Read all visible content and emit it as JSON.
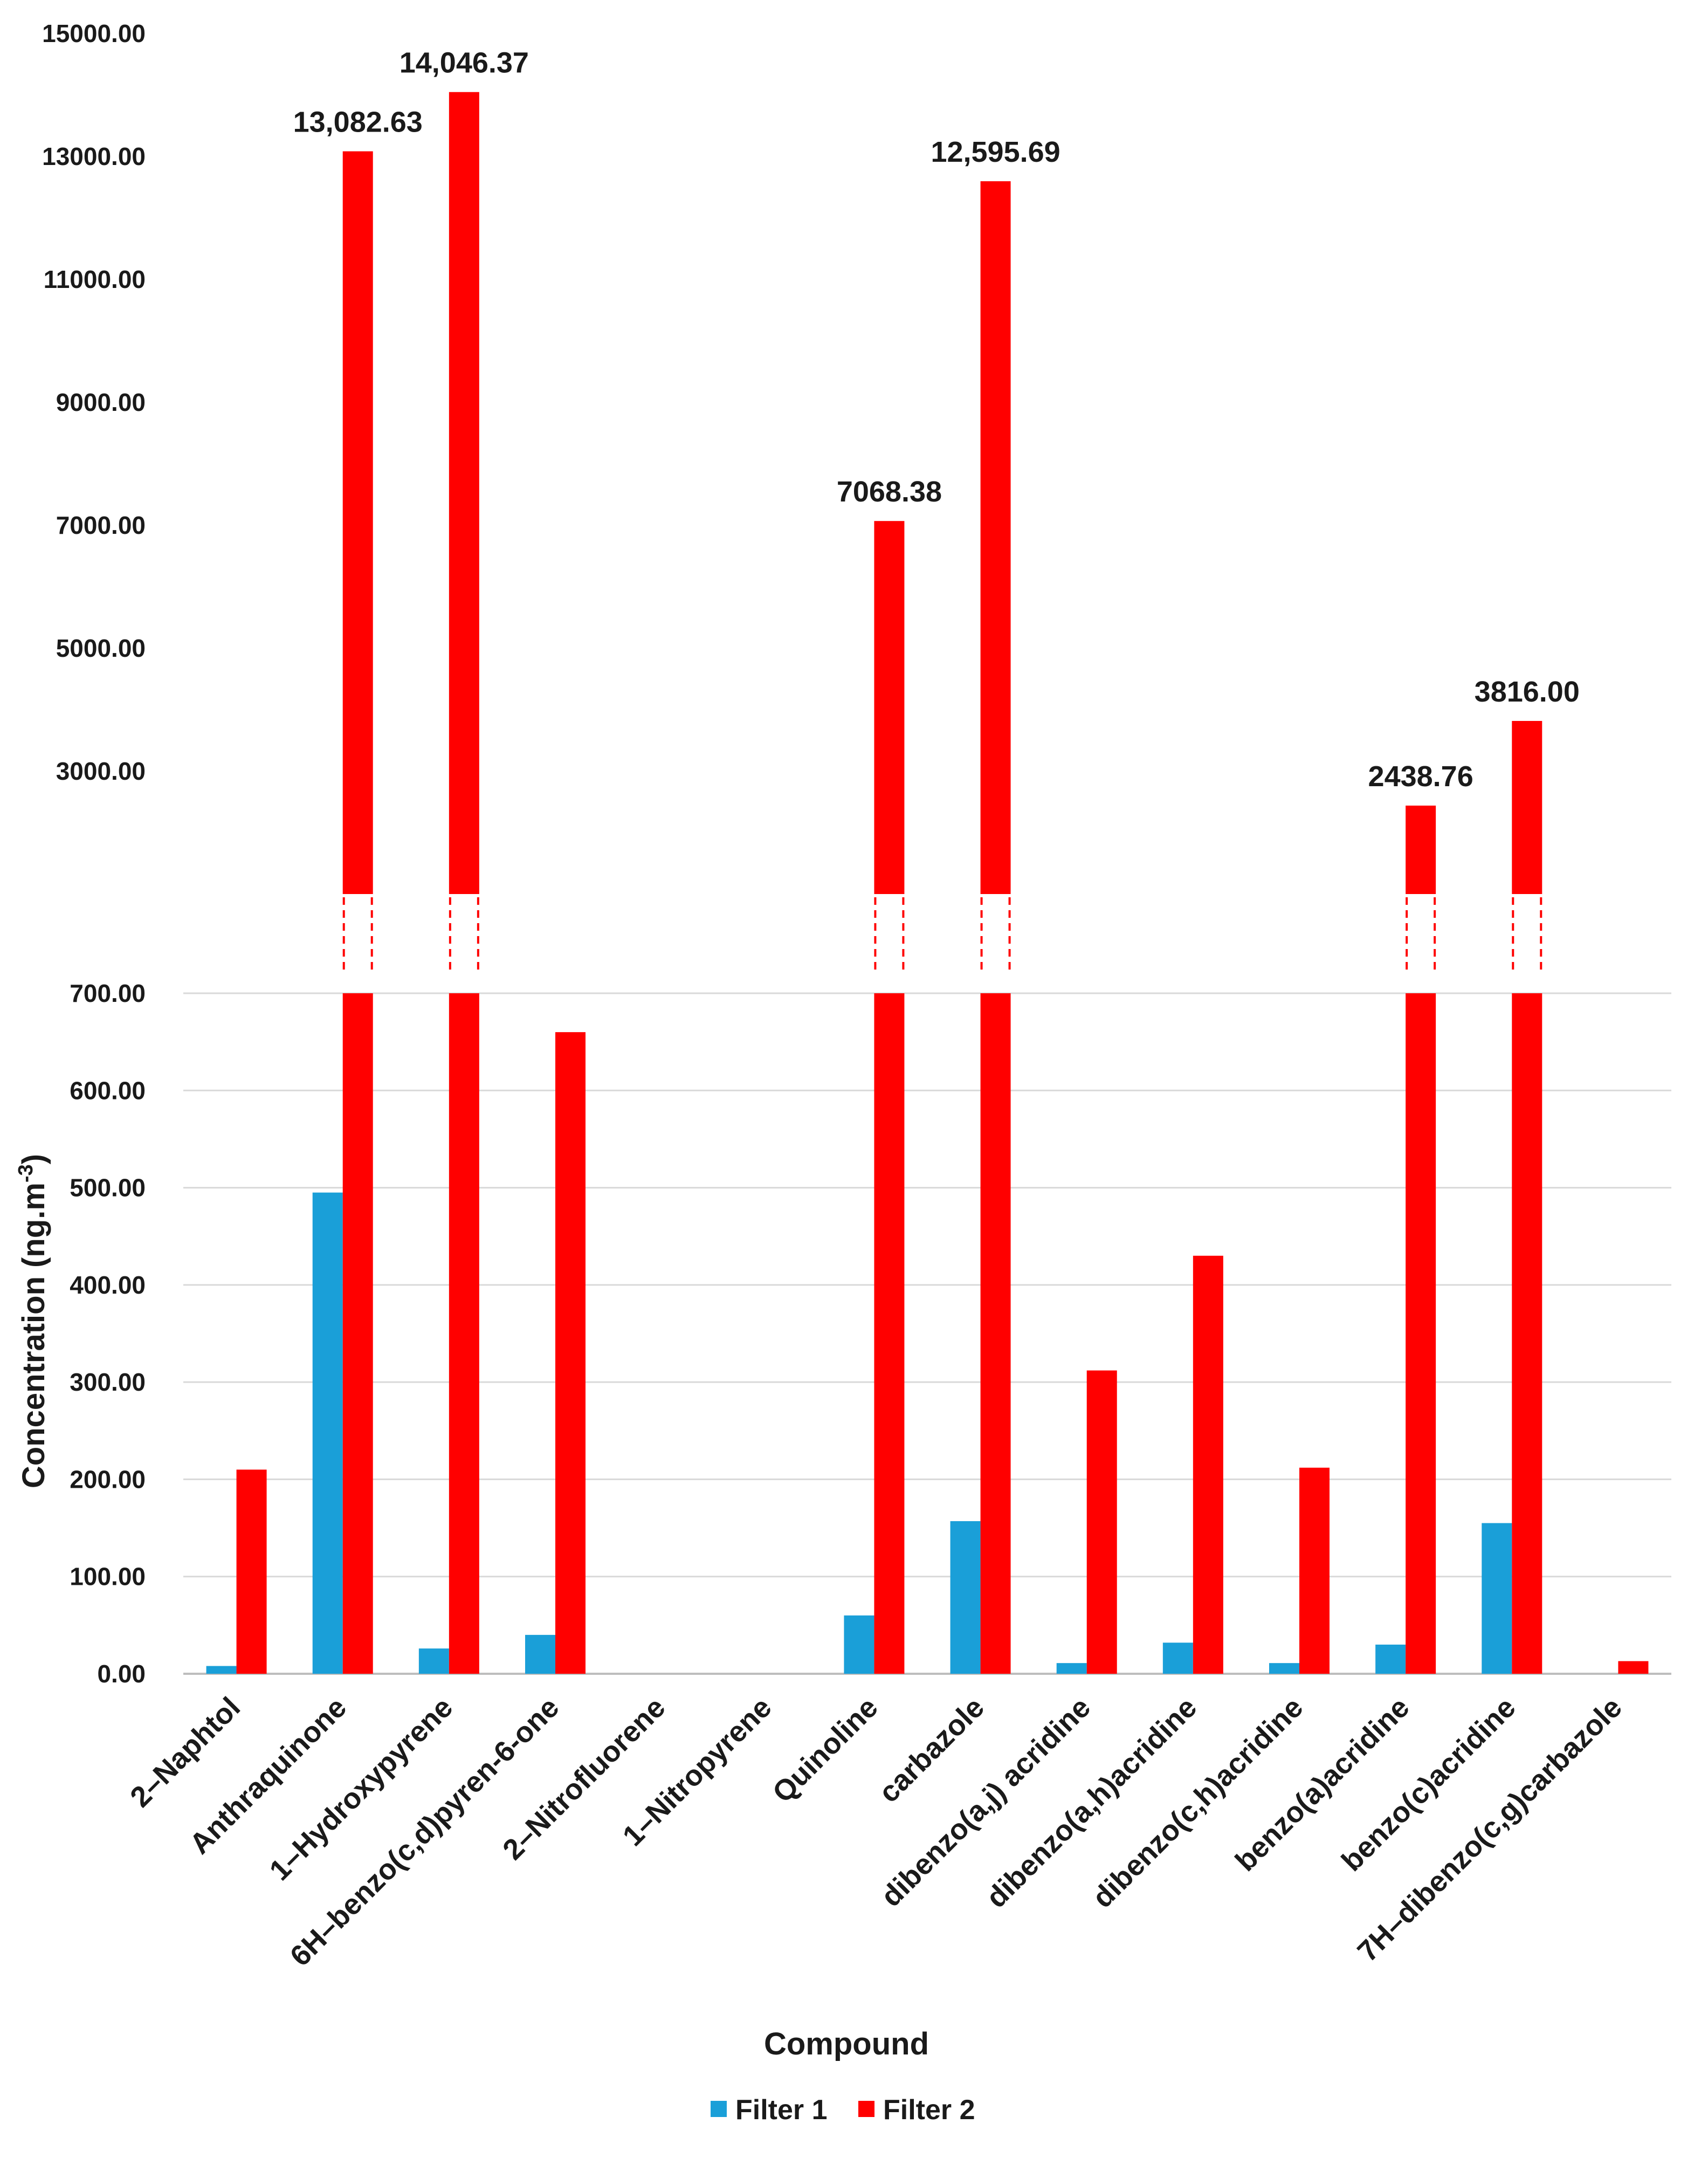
{
  "chart_data": {
    "type": "bar",
    "title": "",
    "xlabel": "Compound",
    "ylabel_main": "Concentration (ng.m",
    "ylabel_sup": "-3",
    "ylabel_close": ")",
    "axis_break": {
      "lower_max": 700,
      "upper_min": 1000,
      "upper_max": 15000
    },
    "lower_ticks": [
      "0.00",
      "100.00",
      "200.00",
      "300.00",
      "400.00",
      "500.00",
      "600.00",
      "700.00"
    ],
    "upper_ticks": [
      "3000.00",
      "5000.00",
      "7000.00",
      "9000.00",
      "11000.00",
      "13000.00",
      "15000.00"
    ],
    "categories": [
      "2–Naphtol",
      "Anthraquinone",
      "1–Hydroxypyrene",
      "6H–benzo(c,d)pyren-6-one",
      "2–Nitrofluorene",
      "1–Nitropyrene",
      "Quinoline",
      "carbazole",
      "dibenzo(a,j) acridine",
      "dibenzo(a,h)acridine",
      "dibenzo(c,h)acridine",
      "benzo(a)acridine",
      "benzo(c)acridine",
      "7H–dibenzo(c,g)carbazole"
    ],
    "series": [
      {
        "name": "Filter 1",
        "color": "#1a9fd8",
        "values": [
          8,
          495,
          26,
          40,
          0,
          0,
          60,
          157,
          11,
          32,
          11,
          30,
          155,
          0
        ]
      },
      {
        "name": "Filter 2",
        "color": "#ff0000",
        "values": [
          210,
          13082.63,
          14046.37,
          660,
          0,
          0,
          7068.38,
          12595.69,
          312,
          430,
          212,
          2438.76,
          3816.0,
          13
        ]
      }
    ],
    "data_labels": [
      {
        "category": "Anthraquinone",
        "series": "Filter 2",
        "text": "13,082.63"
      },
      {
        "category": "1–Hydroxypyrene",
        "series": "Filter 2",
        "text": "14,046.37"
      },
      {
        "category": "Quinoline",
        "series": "Filter 2",
        "text": "7068.38"
      },
      {
        "category": "carbazole",
        "series": "Filter 2",
        "text": "12,595.69"
      },
      {
        "category": "benzo(a)acridine",
        "series": "Filter 2",
        "text": "2438.76"
      },
      {
        "category": "benzo(c)acridine",
        "series": "Filter 2",
        "text": "3816.00"
      }
    ],
    "legend": [
      "Filter 1",
      "Filter 2"
    ],
    "legend_position": "bottom-center",
    "grid": true
  }
}
